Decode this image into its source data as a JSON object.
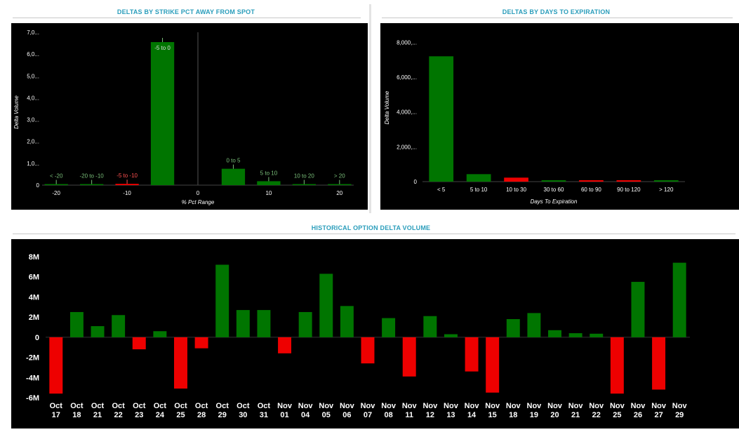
{
  "colors": {
    "positive": "#007500",
    "negative": "#ee0000",
    "title": "#2a9dbb",
    "chart_bg": "#000000",
    "tick_text": "#ffffff",
    "pos_label": "#7ac07a",
    "neg_label": "#ff5050"
  },
  "panels": {
    "strike": {
      "title": "DELTAS BY STRIKE PCT AWAY FROM SPOT"
    },
    "dte": {
      "title": "DELTAS BY DAYS TO EXPIRATION"
    },
    "history": {
      "title": "HISTORICAL OPTION DELTA VOLUME"
    }
  },
  "chart_data": [
    {
      "id": "strike",
      "type": "bar",
      "xlabel": "% Pct Range",
      "ylabel": "Delta Volume",
      "xlim": [
        -22,
        22
      ],
      "ylim": [
        0,
        7000
      ],
      "yticks": [
        0,
        1000,
        2000,
        3000,
        4000,
        5000,
        6000,
        7000
      ],
      "ytick_labels": [
        "0",
        "1,0...",
        "2,0...",
        "3,0...",
        "4,0...",
        "5,0...",
        "6,0...",
        "7,0..."
      ],
      "xticks": [
        -20,
        -10,
        0,
        10,
        20
      ],
      "xtick_labels": [
        "-20",
        "-10",
        "0",
        "10",
        "20"
      ],
      "grid": false,
      "bars": [
        {
          "label": "< -20",
          "center": -20,
          "width": 3.3,
          "value": 15,
          "sign": "positive"
        },
        {
          "label": "-20 to -10",
          "center": -15,
          "width": 3.3,
          "value": 15,
          "sign": "positive"
        },
        {
          "label": "-5 to -10",
          "center": -10,
          "width": 3.3,
          "value": 60,
          "sign": "negative"
        },
        {
          "label": "-5 to 0",
          "center": -5,
          "width": 3.3,
          "value": 6550,
          "sign": "positive"
        },
        {
          "label": "0 to 5",
          "center": 5,
          "width": 3.3,
          "value": 750,
          "sign": "positive"
        },
        {
          "label": "5 to 10",
          "center": 10,
          "width": 3.3,
          "value": 180,
          "sign": "positive"
        },
        {
          "label": "10 to 20",
          "center": 15,
          "width": 3.3,
          "value": 30,
          "sign": "positive"
        },
        {
          "label": "> 20",
          "center": 20,
          "width": 3.3,
          "value": 15,
          "sign": "positive"
        }
      ]
    },
    {
      "id": "dte",
      "type": "bar",
      "xlabel": "Days To Expiration",
      "ylabel": "Delta Volume",
      "ylim": [
        0,
        8500
      ],
      "yticks": [
        0,
        2000,
        4000,
        6000,
        8000
      ],
      "ytick_labels": [
        "0",
        "2,000,...",
        "4,000,...",
        "6,000,...",
        "8,000,..."
      ],
      "grid": false,
      "categories": [
        "< 5",
        "5 to 10",
        "10 to 30",
        "30 to 60",
        "60 to 90",
        "90 to 120",
        "> 120"
      ],
      "values": [
        7200,
        430,
        230,
        70,
        50,
        40,
        80
      ],
      "signs": [
        "positive",
        "positive",
        "negative",
        "positive",
        "negative",
        "negative",
        "positive"
      ]
    },
    {
      "id": "history",
      "type": "bar",
      "xlabel": "",
      "ylabel": "",
      "ylim": [
        -6,
        8
      ],
      "yticks": [
        -6,
        -4,
        -2,
        0,
        2,
        4,
        6,
        8
      ],
      "ytick_labels": [
        "-6M",
        "-4M",
        "-2M",
        "0",
        "2M",
        "4M",
        "6M",
        "8M"
      ],
      "grid": false,
      "categories": [
        [
          "Oct",
          "17"
        ],
        [
          "Oct",
          "18"
        ],
        [
          "Oct",
          "21"
        ],
        [
          "Oct",
          "22"
        ],
        [
          "Oct",
          "23"
        ],
        [
          "Oct",
          "24"
        ],
        [
          "Oct",
          "25"
        ],
        [
          "Oct",
          "28"
        ],
        [
          "Oct",
          "29"
        ],
        [
          "Oct",
          "30"
        ],
        [
          "Oct",
          "31"
        ],
        [
          "Nov",
          "01"
        ],
        [
          "Nov",
          "04"
        ],
        [
          "Nov",
          "05"
        ],
        [
          "Nov",
          "06"
        ],
        [
          "Nov",
          "07"
        ],
        [
          "Nov",
          "08"
        ],
        [
          "Nov",
          "11"
        ],
        [
          "Nov",
          "12"
        ],
        [
          "Nov",
          "13"
        ],
        [
          "Nov",
          "14"
        ],
        [
          "Nov",
          "15"
        ],
        [
          "Nov",
          "18"
        ],
        [
          "Nov",
          "19"
        ],
        [
          "Nov",
          "20"
        ],
        [
          "Nov",
          "21"
        ],
        [
          "Nov",
          "22"
        ],
        [
          "Nov",
          "25"
        ],
        [
          "Nov",
          "26"
        ],
        [
          "Nov",
          "27"
        ],
        [
          "Nov",
          "29"
        ]
      ],
      "values": [
        -5.6,
        2.5,
        1.1,
        2.2,
        -1.2,
        0.6,
        -5.1,
        -1.1,
        7.2,
        2.7,
        2.7,
        -1.6,
        2.5,
        6.3,
        3.1,
        -2.6,
        1.9,
        -3.9,
        2.1,
        0.3,
        -3.4,
        -5.5,
        1.8,
        2.4,
        0.7,
        0.4,
        0.35,
        -5.6,
        5.5,
        -5.2,
        7.4
      ]
    }
  ]
}
